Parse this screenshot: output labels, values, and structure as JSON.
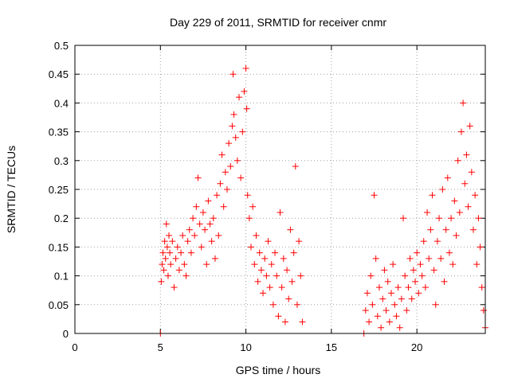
{
  "chart_data": {
    "type": "scatter",
    "title": "Day 229 of 2011, SRMTID for receiver cnmr",
    "xlabel": "GPS time / hours",
    "ylabel": "SRMTID / TECUs",
    "xlim": [
      0,
      24
    ],
    "ylim": [
      0,
      0.5
    ],
    "x_ticks": [
      0,
      5,
      10,
      15,
      20
    ],
    "y_ticks": [
      0,
      0.05,
      0.1,
      0.15,
      0.2,
      0.25,
      0.3,
      0.35,
      0.4,
      0.45,
      0.5
    ],
    "x_tick_labels": [
      "0",
      "5",
      "10",
      "15",
      "20"
    ],
    "y_tick_labels": [
      "0",
      "0.05",
      "0.1",
      "0.15",
      "0.2",
      "0.25",
      "0.3",
      "0.35",
      "0.4",
      "0.45",
      "0.5"
    ],
    "grid": true,
    "marker": "+",
    "color": "#ff0000",
    "series": [
      {
        "name": "SRMTID",
        "points": [
          [
            5.0,
            0.0
          ],
          [
            5.05,
            0.09
          ],
          [
            5.1,
            0.12
          ],
          [
            5.15,
            0.14
          ],
          [
            5.2,
            0.11
          ],
          [
            5.25,
            0.16
          ],
          [
            5.3,
            0.13
          ],
          [
            5.35,
            0.19
          ],
          [
            5.4,
            0.15
          ],
          [
            5.45,
            0.1
          ],
          [
            5.5,
            0.17
          ],
          [
            5.55,
            0.14
          ],
          [
            5.6,
            0.12
          ],
          [
            5.7,
            0.16
          ],
          [
            5.8,
            0.08
          ],
          [
            5.9,
            0.13
          ],
          [
            6.0,
            0.15
          ],
          [
            6.1,
            0.11
          ],
          [
            6.2,
            0.14
          ],
          [
            6.3,
            0.17
          ],
          [
            6.4,
            0.12
          ],
          [
            6.5,
            0.1
          ],
          [
            6.6,
            0.16
          ],
          [
            6.7,
            0.18
          ],
          [
            6.8,
            0.14
          ],
          [
            6.9,
            0.2
          ],
          [
            7.0,
            0.17
          ],
          [
            7.1,
            0.22
          ],
          [
            7.2,
            0.27
          ],
          [
            7.3,
            0.19
          ],
          [
            7.4,
            0.15
          ],
          [
            7.5,
            0.21
          ],
          [
            7.6,
            0.18
          ],
          [
            7.7,
            0.12
          ],
          [
            7.8,
            0.23
          ],
          [
            7.9,
            0.19
          ],
          [
            8.0,
            0.16
          ],
          [
            8.1,
            0.2
          ],
          [
            8.2,
            0.13
          ],
          [
            8.3,
            0.24
          ],
          [
            8.4,
            0.17
          ],
          [
            8.5,
            0.26
          ],
          [
            8.6,
            0.31
          ],
          [
            8.7,
            0.22
          ],
          [
            8.8,
            0.28
          ],
          [
            8.9,
            0.25
          ],
          [
            9.0,
            0.33
          ],
          [
            9.1,
            0.29
          ],
          [
            9.2,
            0.36
          ],
          [
            9.25,
            0.45
          ],
          [
            9.3,
            0.38
          ],
          [
            9.4,
            0.34
          ],
          [
            9.5,
            0.3
          ],
          [
            9.6,
            0.41
          ],
          [
            9.7,
            0.27
          ],
          [
            9.8,
            0.35
          ],
          [
            9.9,
            0.42
          ],
          [
            10.0,
            0.46
          ],
          [
            10.05,
            0.39
          ],
          [
            10.1,
            0.24
          ],
          [
            10.2,
            0.2
          ],
          [
            10.3,
            0.15
          ],
          [
            10.4,
            0.22
          ],
          [
            10.5,
            0.12
          ],
          [
            10.6,
            0.17
          ],
          [
            10.7,
            0.09
          ],
          [
            10.8,
            0.14
          ],
          [
            10.9,
            0.11
          ],
          [
            11.0,
            0.07
          ],
          [
            11.1,
            0.13
          ],
          [
            11.2,
            0.1
          ],
          [
            11.3,
            0.16
          ],
          [
            11.4,
            0.08
          ],
          [
            11.5,
            0.12
          ],
          [
            11.6,
            0.05
          ],
          [
            11.7,
            0.14
          ],
          [
            11.8,
            0.1
          ],
          [
            11.9,
            0.03
          ],
          [
            12.0,
            0.21
          ],
          [
            12.1,
            0.08
          ],
          [
            12.2,
            0.13
          ],
          [
            12.3,
            0.02
          ],
          [
            12.4,
            0.11
          ],
          [
            12.5,
            0.06
          ],
          [
            12.6,
            0.18
          ],
          [
            12.7,
            0.09
          ],
          [
            12.8,
            0.14
          ],
          [
            12.9,
            0.29
          ],
          [
            13.0,
            0.05
          ],
          [
            13.1,
            0.16
          ],
          [
            13.2,
            0.1
          ],
          [
            13.3,
            0.02
          ],
          [
            16.9,
            0.0
          ],
          [
            17.0,
            0.04
          ],
          [
            17.1,
            0.07
          ],
          [
            17.2,
            0.02
          ],
          [
            17.3,
            0.1
          ],
          [
            17.4,
            0.05
          ],
          [
            17.5,
            0.24
          ],
          [
            17.6,
            0.13
          ],
          [
            17.7,
            0.03
          ],
          [
            17.8,
            0.08
          ],
          [
            17.9,
            0.01
          ],
          [
            18.0,
            0.06
          ],
          [
            18.1,
            0.11
          ],
          [
            18.2,
            0.04
          ],
          [
            18.3,
            0.09
          ],
          [
            18.4,
            0.02
          ],
          [
            18.5,
            0.07
          ],
          [
            18.6,
            0.12
          ],
          [
            18.7,
            0.05
          ],
          [
            18.8,
            0.03
          ],
          [
            18.9,
            0.08
          ],
          [
            19.0,
            0.01
          ],
          [
            19.1,
            0.06
          ],
          [
            19.2,
            0.2
          ],
          [
            19.3,
            0.1
          ],
          [
            19.4,
            0.04
          ],
          [
            19.5,
            0.08
          ],
          [
            19.6,
            0.13
          ],
          [
            19.7,
            0.06
          ],
          [
            19.8,
            0.11
          ],
          [
            19.9,
            0.09
          ],
          [
            20.0,
            0.14
          ],
          [
            20.1,
            0.07
          ],
          [
            20.2,
            0.12
          ],
          [
            20.3,
            0.1
          ],
          [
            20.4,
            0.16
          ],
          [
            20.5,
            0.08
          ],
          [
            20.6,
            0.21
          ],
          [
            20.7,
            0.13
          ],
          [
            20.8,
            0.18
          ],
          [
            20.9,
            0.24
          ],
          [
            21.0,
            0.11
          ],
          [
            21.1,
            0.05
          ],
          [
            21.2,
            0.16
          ],
          [
            21.3,
            0.2
          ],
          [
            21.4,
            0.13
          ],
          [
            21.5,
            0.25
          ],
          [
            21.6,
            0.09
          ],
          [
            21.7,
            0.18
          ],
          [
            21.8,
            0.27
          ],
          [
            21.9,
            0.14
          ],
          [
            22.0,
            0.2
          ],
          [
            22.1,
            0.12
          ],
          [
            22.2,
            0.23
          ],
          [
            22.3,
            0.17
          ],
          [
            22.4,
            0.3
          ],
          [
            22.5,
            0.21
          ],
          [
            22.6,
            0.35
          ],
          [
            22.7,
            0.4
          ],
          [
            22.8,
            0.26
          ],
          [
            22.9,
            0.31
          ],
          [
            23.0,
            0.22
          ],
          [
            23.1,
            0.36
          ],
          [
            23.2,
            0.28
          ],
          [
            23.3,
            0.18
          ],
          [
            23.4,
            0.24
          ],
          [
            23.5,
            0.12
          ],
          [
            23.6,
            0.2
          ],
          [
            23.7,
            0.15
          ],
          [
            23.8,
            0.08
          ],
          [
            23.9,
            0.04
          ],
          [
            24.0,
            0.01
          ]
        ]
      }
    ]
  }
}
